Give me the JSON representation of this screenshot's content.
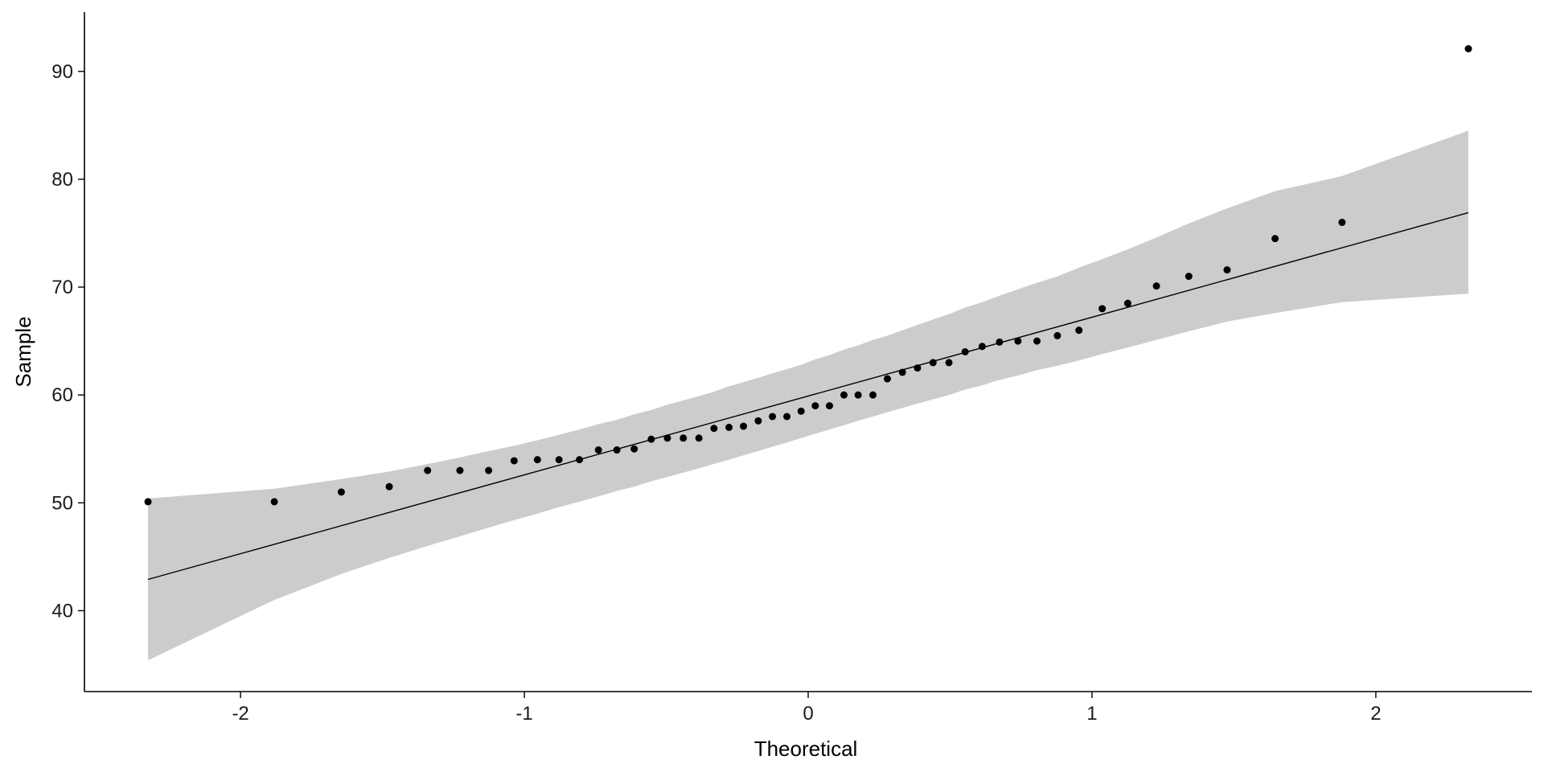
{
  "chart_data": {
    "type": "scatter",
    "title": "",
    "xlabel": "Theoretical",
    "ylabel": "Sample",
    "xlim": [
      -2.55,
      2.55
    ],
    "ylim": [
      32.5,
      95.5
    ],
    "xticks": [
      -2,
      -1,
      0,
      1,
      2
    ],
    "yticks": [
      40,
      50,
      60,
      70,
      80,
      90
    ],
    "grid": false,
    "points": [
      {
        "x": -2.326,
        "y": 50.1
      },
      {
        "x": -1.881,
        "y": 50.1
      },
      {
        "x": -1.645,
        "y": 51.0
      },
      {
        "x": -1.476,
        "y": 51.5
      },
      {
        "x": -1.341,
        "y": 53.0
      },
      {
        "x": -1.227,
        "y": 53.0
      },
      {
        "x": -1.126,
        "y": 53.0
      },
      {
        "x": -1.036,
        "y": 53.9
      },
      {
        "x": -0.954,
        "y": 54.0
      },
      {
        "x": -0.878,
        "y": 54.0
      },
      {
        "x": -0.806,
        "y": 54.0
      },
      {
        "x": -0.739,
        "y": 54.9
      },
      {
        "x": -0.674,
        "y": 54.9
      },
      {
        "x": -0.613,
        "y": 55.0
      },
      {
        "x": -0.553,
        "y": 55.9
      },
      {
        "x": -0.496,
        "y": 56.0
      },
      {
        "x": -0.44,
        "y": 56.0
      },
      {
        "x": -0.385,
        "y": 56.0
      },
      {
        "x": -0.332,
        "y": 56.9
      },
      {
        "x": -0.279,
        "y": 57.0
      },
      {
        "x": -0.228,
        "y": 57.1
      },
      {
        "x": -0.176,
        "y": 57.6
      },
      {
        "x": -0.126,
        "y": 58.0
      },
      {
        "x": -0.075,
        "y": 58.0
      },
      {
        "x": -0.025,
        "y": 58.5
      },
      {
        "x": 0.025,
        "y": 59.0
      },
      {
        "x": 0.075,
        "y": 59.0
      },
      {
        "x": 0.126,
        "y": 60.0
      },
      {
        "x": 0.176,
        "y": 60.0
      },
      {
        "x": 0.228,
        "y": 60.0
      },
      {
        "x": 0.279,
        "y": 61.5
      },
      {
        "x": 0.332,
        "y": 62.1
      },
      {
        "x": 0.385,
        "y": 62.5
      },
      {
        "x": 0.44,
        "y": 63.0
      },
      {
        "x": 0.496,
        "y": 63.0
      },
      {
        "x": 0.553,
        "y": 64.0
      },
      {
        "x": 0.613,
        "y": 64.5
      },
      {
        "x": 0.674,
        "y": 64.9
      },
      {
        "x": 0.739,
        "y": 65.0
      },
      {
        "x": 0.806,
        "y": 65.0
      },
      {
        "x": 0.878,
        "y": 65.5
      },
      {
        "x": 0.954,
        "y": 66.0
      },
      {
        "x": 1.036,
        "y": 68.0
      },
      {
        "x": 1.126,
        "y": 68.5
      },
      {
        "x": 1.227,
        "y": 70.1
      },
      {
        "x": 1.341,
        "y": 71.0
      },
      {
        "x": 1.476,
        "y": 71.6
      },
      {
        "x": 1.645,
        "y": 74.5
      },
      {
        "x": 1.881,
        "y": 76.0
      },
      {
        "x": 2.326,
        "y": 92.1
      }
    ],
    "reference_line": {
      "x": [
        -2.326,
        2.326
      ],
      "y": [
        42.9,
        76.9
      ]
    },
    "confidence_band": {
      "x": [
        -2.326,
        -1.881,
        -1.645,
        -1.476,
        -1.341,
        -1.227,
        -1.126,
        -1.036,
        -0.954,
        -0.878,
        -0.806,
        -0.739,
        -0.674,
        -0.613,
        -0.553,
        -0.496,
        -0.44,
        -0.385,
        -0.332,
        -0.279,
        -0.228,
        -0.176,
        -0.126,
        -0.075,
        -0.025,
        0.025,
        0.075,
        0.126,
        0.176,
        0.228,
        0.279,
        0.332,
        0.385,
        0.44,
        0.496,
        0.553,
        0.613,
        0.674,
        0.739,
        0.806,
        0.878,
        0.954,
        1.036,
        1.126,
        1.227,
        1.341,
        1.476,
        1.645,
        1.881,
        2.326
      ],
      "upper": [
        50.4,
        51.3,
        52.2,
        52.9,
        53.6,
        54.2,
        54.8,
        55.3,
        55.8,
        56.3,
        56.8,
        57.3,
        57.7,
        58.2,
        58.6,
        59.1,
        59.5,
        59.9,
        60.3,
        60.8,
        61.2,
        61.6,
        62.0,
        62.4,
        62.8,
        63.3,
        63.7,
        64.2,
        64.6,
        65.1,
        65.5,
        66.0,
        66.5,
        67.0,
        67.5,
        68.1,
        68.6,
        69.2,
        69.8,
        70.4,
        71.0,
        71.8,
        72.6,
        73.5,
        74.6,
        75.9,
        77.3,
        78.9,
        80.3,
        84.5
      ],
      "lower": [
        35.4,
        41.0,
        43.4,
        44.9,
        46.0,
        46.9,
        47.7,
        48.4,
        49.0,
        49.6,
        50.1,
        50.6,
        51.1,
        51.5,
        52.0,
        52.4,
        52.8,
        53.2,
        53.6,
        54.0,
        54.4,
        54.8,
        55.2,
        55.6,
        56.0,
        56.4,
        56.8,
        57.2,
        57.6,
        58.0,
        58.4,
        58.8,
        59.2,
        59.6,
        60.0,
        60.5,
        60.9,
        61.4,
        61.8,
        62.3,
        62.7,
        63.2,
        63.8,
        64.4,
        65.1,
        65.9,
        66.8,
        67.6,
        68.6,
        69.4
      ]
    },
    "colors": {
      "points": "#000000",
      "line": "#000000",
      "band": "#cccccc",
      "axis": "#000000"
    }
  }
}
